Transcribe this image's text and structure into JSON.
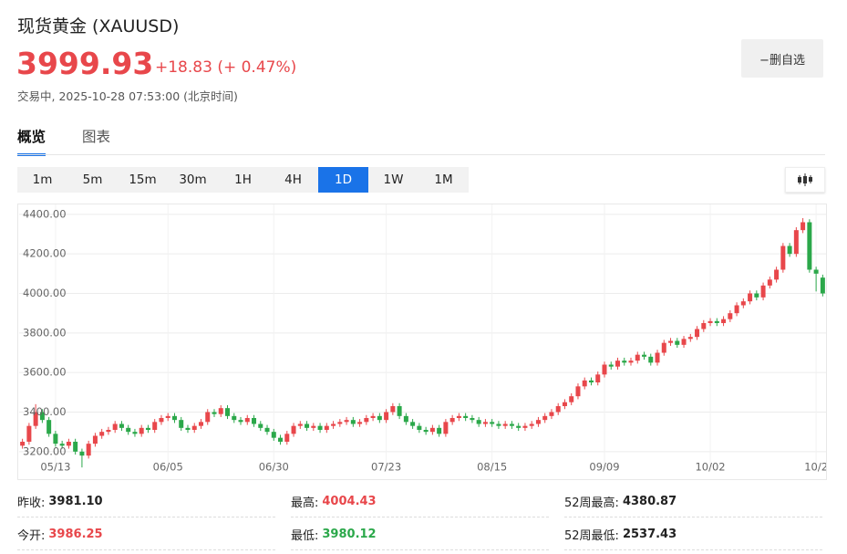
{
  "header": {
    "title": "现货黄金  (XAUUSD)",
    "price": "3999.93",
    "change": "+18.83 (+ 0.47%)",
    "status": "交易中, 2025-10-28 07:53:00  (北京时间)",
    "button": "−删自选"
  },
  "tabs": [
    "概览",
    "图表"
  ],
  "timeframes": [
    "1m",
    "5m",
    "15m",
    "30m",
    "1H",
    "4H",
    "1D",
    "1W",
    "1M"
  ],
  "stats": [
    {
      "label": "昨收:",
      "value": "3981.10"
    },
    {
      "label": "最高:",
      "value": "4004.43"
    },
    {
      "label": "52周最高:",
      "value": "4380.87"
    },
    {
      "label": "今开:",
      "value": "3986.25"
    },
    {
      "label": "最低:",
      "value": "3980.12"
    },
    {
      "label": "52周最低:",
      "value": "2537.43"
    }
  ],
  "chart_data": {
    "type": "candlestick",
    "up_color": "#e8474b",
    "down_color": "#2ba84a",
    "grid": true,
    "ylim": [
      3100,
      4450
    ],
    "yticks": [
      {
        "value": 3200,
        "label": "3200.00"
      },
      {
        "value": 3400,
        "label": "3400.00"
      },
      {
        "value": 3600,
        "label": "3600.00"
      },
      {
        "value": 3800,
        "label": "3800.00"
      },
      {
        "value": 4000,
        "label": "4000.00"
      },
      {
        "value": 4200,
        "label": "4200.00"
      },
      {
        "value": 4400,
        "label": "4400.00"
      }
    ],
    "categories": [
      null,
      null,
      null,
      null,
      null,
      "05/13",
      null,
      null,
      null,
      null,
      null,
      null,
      null,
      null,
      null,
      null,
      null,
      null,
      null,
      null,
      null,
      null,
      "06/05",
      null,
      null,
      null,
      null,
      null,
      null,
      null,
      null,
      null,
      null,
      null,
      null,
      null,
      null,
      null,
      "06/30",
      null,
      null,
      null,
      null,
      null,
      null,
      null,
      null,
      null,
      null,
      null,
      null,
      null,
      null,
      null,
      null,
      "07/23",
      null,
      null,
      null,
      null,
      null,
      null,
      null,
      null,
      null,
      null,
      null,
      null,
      null,
      null,
      null,
      "08/15",
      null,
      null,
      null,
      null,
      null,
      null,
      null,
      null,
      null,
      null,
      null,
      null,
      null,
      null,
      null,
      null,
      "09/09",
      null,
      null,
      null,
      null,
      null,
      null,
      null,
      null,
      null,
      null,
      null,
      null,
      null,
      null,
      null,
      "10/02",
      null,
      null,
      null,
      null,
      null,
      null,
      null,
      null,
      null,
      null,
      null,
      null,
      null,
      null,
      null,
      "10/2",
      null
    ],
    "open": [
      3230,
      3250,
      3330,
      3400,
      3360,
      3290,
      3240,
      3230,
      3250,
      3200,
      3180,
      3240,
      3280,
      3300,
      3310,
      3340,
      3320,
      3300,
      3290,
      3320,
      3310,
      3350,
      3370,
      3380,
      3360,
      3320,
      3310,
      3330,
      3350,
      3400,
      3390,
      3420,
      3380,
      3360,
      3350,
      3370,
      3340,
      3320,
      3300,
      3270,
      3250,
      3290,
      3330,
      3340,
      3320,
      3330,
      3310,
      3330,
      3340,
      3350,
      3360,
      3340,
      3350,
      3370,
      3380,
      3360,
      3400,
      3430,
      3380,
      3350,
      3330,
      3310,
      3300,
      3320,
      3290,
      3350,
      3370,
      3380,
      3370,
      3360,
      3340,
      3350,
      3340,
      3330,
      3340,
      3330,
      3320,
      3330,
      3340,
      3360,
      3380,
      3400,
      3430,
      3450,
      3480,
      3530,
      3560,
      3550,
      3590,
      3640,
      3630,
      3660,
      3650,
      3660,
      3690,
      3680,
      3650,
      3700,
      3750,
      3760,
      3740,
      3770,
      3780,
      3820,
      3850,
      3860,
      3850,
      3870,
      3900,
      3940,
      3960,
      4000,
      3980,
      4040,
      4070,
      4120,
      4240,
      4200,
      4320,
      4360,
      4120,
      4080
    ],
    "high": [
      3265,
      3345,
      3440,
      3415,
      3375,
      3305,
      3255,
      3265,
      3265,
      3215,
      3255,
      3295,
      3315,
      3325,
      3355,
      3355,
      3335,
      3315,
      3335,
      3335,
      3365,
      3385,
      3395,
      3395,
      3375,
      3335,
      3345,
      3365,
      3415,
      3415,
      3435,
      3435,
      3395,
      3375,
      3385,
      3385,
      3355,
      3335,
      3315,
      3285,
      3305,
      3345,
      3355,
      3355,
      3345,
      3345,
      3345,
      3355,
      3365,
      3375,
      3375,
      3365,
      3385,
      3395,
      3395,
      3415,
      3445,
      3445,
      3395,
      3365,
      3345,
      3325,
      3335,
      3335,
      3365,
      3385,
      3395,
      3395,
      3385,
      3375,
      3365,
      3365,
      3355,
      3355,
      3355,
      3345,
      3345,
      3355,
      3375,
      3395,
      3415,
      3445,
      3465,
      3495,
      3545,
      3575,
      3575,
      3605,
      3655,
      3655,
      3675,
      3675,
      3675,
      3705,
      3705,
      3695,
      3715,
      3765,
      3775,
      3775,
      3785,
      3795,
      3835,
      3865,
      3875,
      3875,
      3885,
      3915,
      3955,
      3975,
      4015,
      4015,
      4055,
      4085,
      4135,
      4255,
      4255,
      4335,
      4381,
      4375,
      4135,
      4095
    ],
    "low": [
      3215,
      3235,
      3315,
      3345,
      3275,
      3225,
      3215,
      3215,
      3185,
      3120,
      3165,
      3225,
      3265,
      3285,
      3295,
      3305,
      3285,
      3275,
      3275,
      3295,
      3295,
      3335,
      3355,
      3345,
      3305,
      3295,
      3295,
      3315,
      3335,
      3375,
      3375,
      3365,
      3345,
      3335,
      3335,
      3325,
      3305,
      3285,
      3255,
      3235,
      3235,
      3275,
      3315,
      3305,
      3305,
      3295,
      3295,
      3315,
      3325,
      3335,
      3325,
      3325,
      3335,
      3355,
      3345,
      3345,
      3385,
      3365,
      3335,
      3315,
      3295,
      3285,
      3285,
      3275,
      3275,
      3335,
      3355,
      3355,
      3345,
      3325,
      3325,
      3325,
      3315,
      3315,
      3315,
      3305,
      3305,
      3315,
      3325,
      3345,
      3365,
      3385,
      3415,
      3435,
      3465,
      3515,
      3535,
      3535,
      3575,
      3615,
      3615,
      3635,
      3635,
      3645,
      3665,
      3635,
      3635,
      3685,
      3735,
      3725,
      3725,
      3755,
      3765,
      3805,
      3835,
      3835,
      3835,
      3855,
      3885,
      3925,
      3945,
      3965,
      3965,
      4025,
      4055,
      4105,
      4185,
      4185,
      4305,
      4105,
      4010,
      3985
    ],
    "close": [
      3250,
      3330,
      3400,
      3360,
      3290,
      3240,
      3230,
      3250,
      3200,
      3180,
      3240,
      3280,
      3300,
      3310,
      3340,
      3320,
      3300,
      3290,
      3320,
      3310,
      3350,
      3370,
      3380,
      3360,
      3320,
      3310,
      3330,
      3350,
      3400,
      3390,
      3420,
      3380,
      3360,
      3350,
      3370,
      3340,
      3320,
      3300,
      3270,
      3250,
      3290,
      3330,
      3340,
      3320,
      3330,
      3310,
      3330,
      3340,
      3350,
      3360,
      3340,
      3350,
      3370,
      3380,
      3360,
      3400,
      3430,
      3380,
      3350,
      3330,
      3310,
      3300,
      3320,
      3290,
      3350,
      3370,
      3380,
      3370,
      3360,
      3340,
      3350,
      3340,
      3330,
      3340,
      3330,
      3320,
      3330,
      3340,
      3360,
      3380,
      3400,
      3430,
      3450,
      3480,
      3530,
      3560,
      3550,
      3590,
      3640,
      3630,
      3660,
      3650,
      3660,
      3690,
      3680,
      3650,
      3700,
      3750,
      3760,
      3740,
      3770,
      3780,
      3820,
      3850,
      3860,
      3850,
      3870,
      3900,
      3940,
      3960,
      4000,
      3980,
      4040,
      4070,
      4120,
      4240,
      4200,
      4320,
      4360,
      4120,
      4100,
      4000
    ]
  }
}
